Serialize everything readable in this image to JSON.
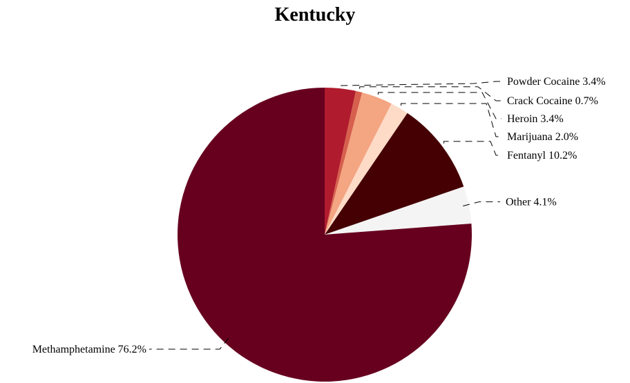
{
  "chart_data": {
    "type": "pie",
    "title": "Kentucky",
    "slices": [
      {
        "label": "Powder Cocaine",
        "value": 3.4,
        "display": "3.4%",
        "color": "#b01c2e"
      },
      {
        "label": "Crack Cocaine",
        "value": 0.7,
        "display": "0.7%",
        "color": "#d6604d"
      },
      {
        "label": "Heroin",
        "value": 3.4,
        "display": "3.4%",
        "color": "#f4a582"
      },
      {
        "label": "Marijuana",
        "value": 2.0,
        "display": "2.0%",
        "color": "#fddbc7"
      },
      {
        "label": "Fentanyl",
        "value": 10.2,
        "display": "10.2%",
        "color": "#450003"
      },
      {
        "label": "Other",
        "value": 4.1,
        "display": "4.1%",
        "color": "#f4f4f4"
      },
      {
        "label": "Methamphetamine",
        "value": 76.2,
        "display": "76.2%",
        "color": "#67001f"
      }
    ],
    "start_angle": "12 o'clock",
    "direction": "clockwise",
    "legend": "none"
  }
}
